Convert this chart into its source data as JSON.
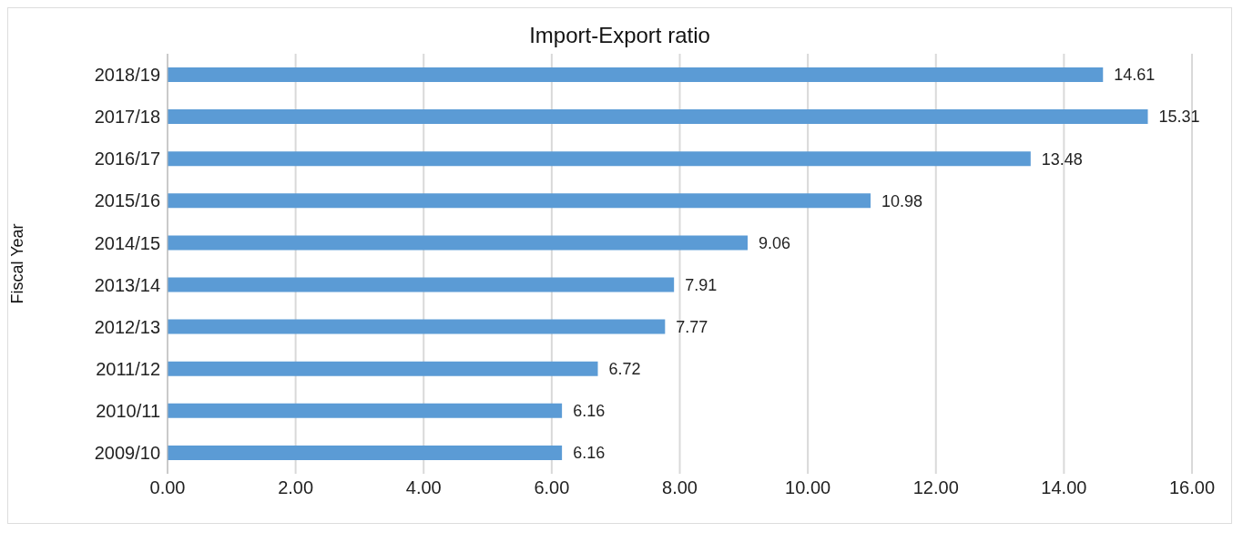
{
  "chart_data": {
    "type": "bar",
    "orientation": "horizontal",
    "title": "Import-Export ratio",
    "ylabel": "Fiscal Year",
    "categories": [
      "2018/19",
      "2017/18",
      "2016/17",
      "2015/16",
      "2014/15",
      "2013/14",
      "2012/13",
      "2011/12",
      "2010/11",
      "2009/10"
    ],
    "values": [
      14.61,
      15.31,
      13.48,
      10.98,
      9.06,
      7.91,
      7.77,
      6.72,
      6.16,
      6.16
    ],
    "color": "#5b9bd5",
    "data_labels": true,
    "grid": "x",
    "legend": false,
    "xlim": [
      0,
      16
    ],
    "xticks": [
      {
        "value": 0,
        "label": "0.00"
      },
      {
        "value": 2,
        "label": "2.00"
      },
      {
        "value": 4,
        "label": "4.00"
      },
      {
        "value": 6,
        "label": "6.00"
      },
      {
        "value": 8,
        "label": "8.00"
      },
      {
        "value": 10,
        "label": "10.00"
      },
      {
        "value": 12,
        "label": "12.00"
      },
      {
        "value": 14,
        "label": "14.00"
      },
      {
        "value": 16,
        "label": "16.00"
      }
    ]
  }
}
